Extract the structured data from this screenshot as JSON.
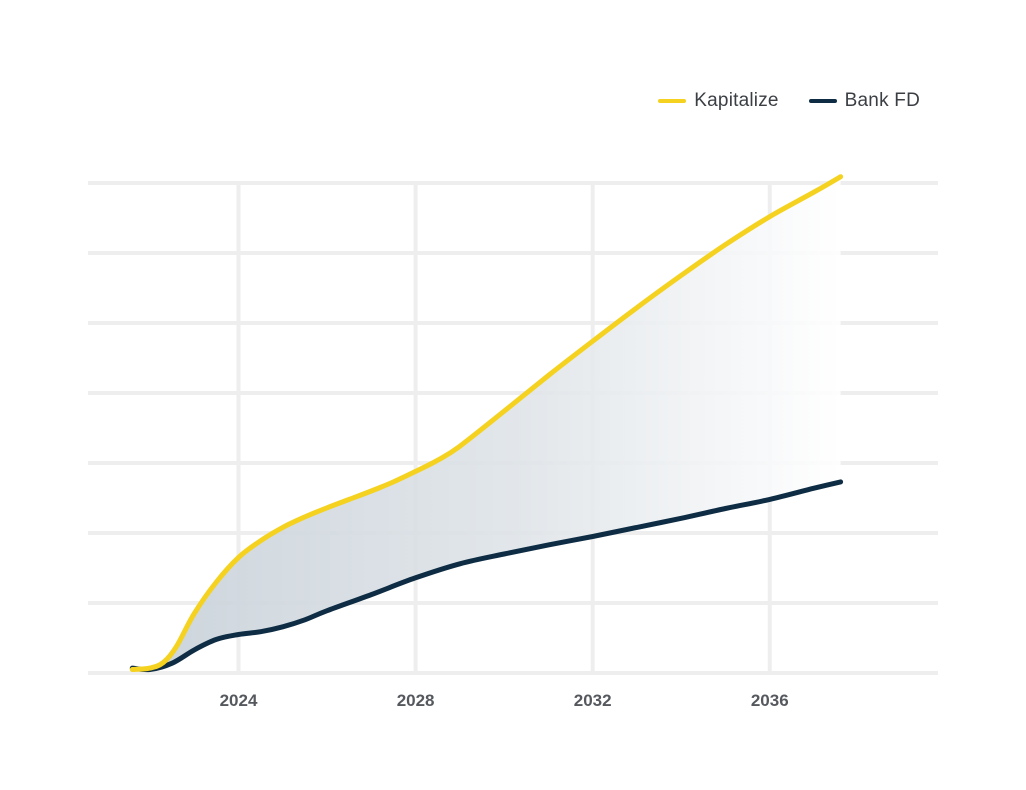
{
  "chart_data": {
    "type": "line",
    "title": "",
    "xlabel": "",
    "ylabel": "",
    "x_ticks": [
      "2024",
      "2028",
      "2032",
      "2036"
    ],
    "xlim": [
      2020.6,
      2039.8
    ],
    "ylim": [
      0,
      7
    ],
    "grid": true,
    "legend_position": "top-right",
    "fill_between_series": true,
    "series": [
      {
        "name": "Kapitalize",
        "color": "#f4d21f",
        "points": [
          [
            2021.6,
            0.05
          ],
          [
            2022.0,
            0.07
          ],
          [
            2022.3,
            0.15
          ],
          [
            2022.6,
            0.38
          ],
          [
            2023.0,
            0.85
          ],
          [
            2023.5,
            1.3
          ],
          [
            2024.0,
            1.65
          ],
          [
            2024.5,
            1.89
          ],
          [
            2025.0,
            2.08
          ],
          [
            2025.5,
            2.23
          ],
          [
            2026.0,
            2.36
          ],
          [
            2026.5,
            2.48
          ],
          [
            2027.0,
            2.6
          ],
          [
            2027.5,
            2.73
          ],
          [
            2028.0,
            2.88
          ],
          [
            2028.5,
            3.04
          ],
          [
            2029.0,
            3.24
          ],
          [
            2030.0,
            3.74
          ],
          [
            2031.0,
            4.25
          ],
          [
            2032.0,
            4.74
          ],
          [
            2033.0,
            5.22
          ],
          [
            2034.0,
            5.68
          ],
          [
            2035.0,
            6.12
          ],
          [
            2036.0,
            6.52
          ],
          [
            2037.0,
            6.87
          ],
          [
            2037.6,
            7.09
          ]
        ]
      },
      {
        "name": "Bank FD",
        "color": "#0e2d45",
        "points": [
          [
            2021.6,
            0.07
          ],
          [
            2022.0,
            0.05
          ],
          [
            2022.5,
            0.14
          ],
          [
            2023.0,
            0.33
          ],
          [
            2023.5,
            0.48
          ],
          [
            2024.0,
            0.55
          ],
          [
            2024.5,
            0.59
          ],
          [
            2025.0,
            0.66
          ],
          [
            2025.5,
            0.76
          ],
          [
            2026.0,
            0.89
          ],
          [
            2027.0,
            1.12
          ],
          [
            2028.0,
            1.36
          ],
          [
            2029.0,
            1.56
          ],
          [
            2030.0,
            1.7
          ],
          [
            2031.0,
            1.83
          ],
          [
            2032.0,
            1.95
          ],
          [
            2033.0,
            2.08
          ],
          [
            2034.0,
            2.21
          ],
          [
            2035.0,
            2.35
          ],
          [
            2036.0,
            2.48
          ],
          [
            2037.0,
            2.64
          ],
          [
            2037.6,
            2.73
          ]
        ]
      }
    ]
  }
}
